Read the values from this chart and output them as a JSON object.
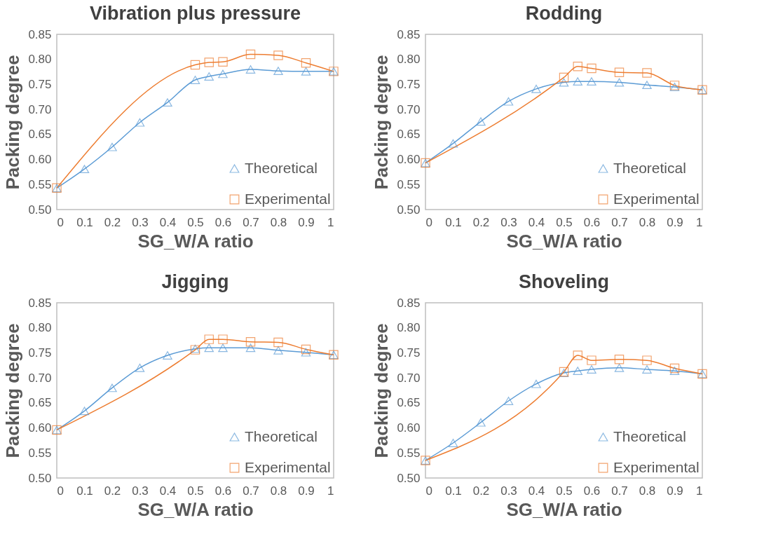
{
  "chart_data": [
    {
      "type": "line",
      "title": "Vibration plus pressure",
      "xlabel": "SG_W/A ratio",
      "ylabel": "Packing degree",
      "xlim": [
        0,
        1
      ],
      "xticks": [
        0,
        0.1,
        0.2,
        0.3,
        0.4,
        0.5,
        0.6,
        0.7,
        0.8,
        0.9,
        1
      ],
      "ylim": [
        0.5,
        0.85
      ],
      "yticks": [
        {
          "value": 0.5,
          "label": "0.50"
        },
        {
          "value": 0.55,
          "label": "0.55"
        },
        {
          "value": 0.6,
          "label": "0.60"
        },
        {
          "value": 0.65,
          "label": "0.65"
        },
        {
          "value": 0.7,
          "label": "0.70"
        },
        {
          "value": 0.75,
          "label": "0.75"
        },
        {
          "value": 0.8,
          "label": "0.80"
        },
        {
          "value": 0.85,
          "label": "0.85"
        }
      ],
      "grid": false,
      "legend": "bottom right",
      "series": [
        {
          "name": "Theoretical",
          "color": "#5b9bd5",
          "marker": "triangle",
          "x": [
            0,
            0.1,
            0.2,
            0.3,
            0.4,
            0.5,
            0.55,
            0.6,
            0.7,
            0.8,
            0.9,
            1
          ],
          "values": [
            0.543,
            0.581,
            0.625,
            0.674,
            0.714,
            0.759,
            0.766,
            0.771,
            0.78,
            0.777,
            0.776,
            0.776
          ]
        },
        {
          "name": "Experimental",
          "color": "#ed7d31",
          "marker": "square",
          "x": [
            0,
            0.5,
            0.55,
            0.6,
            0.7,
            0.8,
            0.9,
            1
          ],
          "values": [
            0.543,
            0.789,
            0.794,
            0.795,
            0.81,
            0.808,
            0.793,
            0.776
          ]
        }
      ]
    },
    {
      "type": "line",
      "title": "Rodding",
      "xlabel": "SG_W/A ratio",
      "ylabel": "Packing degree",
      "xlim": [
        0,
        1
      ],
      "xticks": [
        0,
        0.1,
        0.2,
        0.3,
        0.4,
        0.5,
        0.6,
        0.7,
        0.8,
        0.9,
        1
      ],
      "ylim": [
        0.5,
        0.85
      ],
      "yticks": [
        {
          "value": 0.5,
          "label": "0.50"
        },
        {
          "value": 0.55,
          "label": "0.55"
        },
        {
          "value": 0.6,
          "label": "0.60"
        },
        {
          "value": 0.65,
          "label": "0.65"
        },
        {
          "value": 0.7,
          "label": "0.70"
        },
        {
          "value": 0.75,
          "label": "0.75"
        },
        {
          "value": 0.8,
          "label": "0.80"
        },
        {
          "value": 0.85,
          "label": "0.85"
        }
      ],
      "grid": false,
      "legend": "bottom right",
      "series": [
        {
          "name": "Theoretical",
          "color": "#5b9bd5",
          "marker": "triangle",
          "x": [
            0,
            0.1,
            0.2,
            0.3,
            0.4,
            0.5,
            0.55,
            0.6,
            0.7,
            0.8,
            0.9,
            1
          ],
          "values": [
            0.593,
            0.632,
            0.676,
            0.716,
            0.741,
            0.754,
            0.756,
            0.756,
            0.754,
            0.749,
            0.745,
            0.739
          ]
        },
        {
          "name": "Experimental",
          "color": "#ed7d31",
          "marker": "square",
          "x": [
            0,
            0.5,
            0.55,
            0.6,
            0.7,
            0.8,
            0.9,
            1
          ],
          "values": [
            0.593,
            0.764,
            0.786,
            0.782,
            0.774,
            0.773,
            0.748,
            0.739
          ]
        }
      ]
    },
    {
      "type": "line",
      "title": "Jigging",
      "xlabel": "SG_W/A ratio",
      "ylabel": "Packing degree",
      "xlim": [
        0,
        1
      ],
      "xticks": [
        0,
        0.1,
        0.2,
        0.3,
        0.4,
        0.5,
        0.6,
        0.7,
        0.8,
        0.9,
        1
      ],
      "ylim": [
        0.5,
        0.85
      ],
      "yticks": [
        {
          "value": 0.5,
          "label": "0.50"
        },
        {
          "value": 0.55,
          "label": "0.55"
        },
        {
          "value": 0.6,
          "label": "0.60"
        },
        {
          "value": 0.65,
          "label": "0.65"
        },
        {
          "value": 0.7,
          "label": "0.70"
        },
        {
          "value": 0.75,
          "label": "0.75"
        },
        {
          "value": 0.8,
          "label": "0.80"
        },
        {
          "value": 0.85,
          "label": "0.85"
        }
      ],
      "grid": false,
      "legend": "bottom right",
      "series": [
        {
          "name": "Theoretical",
          "color": "#5b9bd5",
          "marker": "triangle",
          "x": [
            0,
            0.1,
            0.2,
            0.3,
            0.4,
            0.5,
            0.55,
            0.6,
            0.7,
            0.8,
            0.9,
            1
          ],
          "values": [
            0.596,
            0.634,
            0.68,
            0.72,
            0.745,
            0.758,
            0.76,
            0.76,
            0.76,
            0.755,
            0.751,
            0.746
          ]
        },
        {
          "name": "Experimental",
          "color": "#ed7d31",
          "marker": "square",
          "x": [
            0,
            0.5,
            0.55,
            0.6,
            0.7,
            0.8,
            0.9,
            1
          ],
          "values": [
            0.596,
            0.756,
            0.777,
            0.777,
            0.772,
            0.771,
            0.757,
            0.746
          ]
        }
      ]
    },
    {
      "type": "line",
      "title": "Shoveling",
      "xlabel": "SG_W/A ratio",
      "ylabel": "Packing degree",
      "xlim": [
        0,
        1
      ],
      "xticks": [
        0,
        0.1,
        0.2,
        0.3,
        0.4,
        0.5,
        0.6,
        0.7,
        0.8,
        0.9,
        1
      ],
      "ylim": [
        0.5,
        0.85
      ],
      "yticks": [
        {
          "value": 0.5,
          "label": "0.50"
        },
        {
          "value": 0.55,
          "label": "0.55"
        },
        {
          "value": 0.6,
          "label": "0.60"
        },
        {
          "value": 0.65,
          "label": "0.65"
        },
        {
          "value": 0.7,
          "label": "0.70"
        },
        {
          "value": 0.75,
          "label": "0.75"
        },
        {
          "value": 0.8,
          "label": "0.80"
        },
        {
          "value": 0.85,
          "label": "0.85"
        }
      ],
      "grid": false,
      "legend": "bottom right",
      "series": [
        {
          "name": "Theoretical",
          "color": "#5b9bd5",
          "marker": "triangle",
          "x": [
            0,
            0.1,
            0.2,
            0.3,
            0.4,
            0.5,
            0.55,
            0.6,
            0.7,
            0.8,
            0.9,
            1
          ],
          "values": [
            0.535,
            0.57,
            0.611,
            0.654,
            0.688,
            0.71,
            0.714,
            0.717,
            0.72,
            0.717,
            0.714,
            0.708
          ]
        },
        {
          "name": "Experimental",
          "color": "#ed7d31",
          "marker": "square",
          "x": [
            0,
            0.5,
            0.55,
            0.6,
            0.7,
            0.8,
            0.9,
            1
          ],
          "values": [
            0.535,
            0.712,
            0.745,
            0.735,
            0.737,
            0.735,
            0.719,
            0.708
          ]
        }
      ]
    }
  ]
}
